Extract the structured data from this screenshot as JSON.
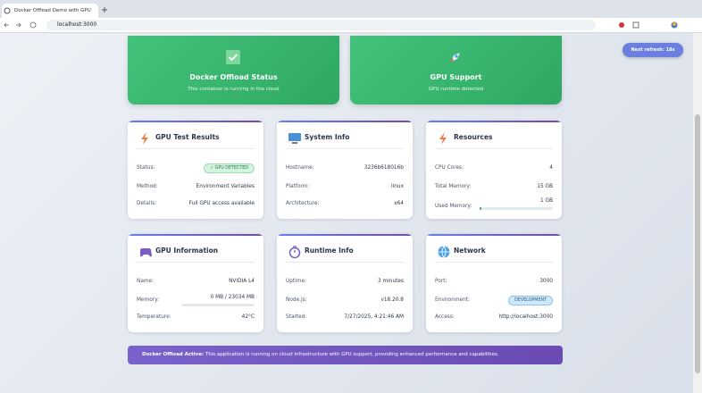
{
  "browser": {
    "tab_title": "Docker Offload Demo with GPU",
    "url": "localhost:3000"
  },
  "refresh_button": "Next refresh: 18s",
  "hero": [
    {
      "title": "Docker Offload Status",
      "subtitle": "This container is running in the cloud"
    },
    {
      "title": "GPU Support",
      "subtitle": "GPU runtime detected"
    }
  ],
  "cards": [
    {
      "title": "GPU Test Results",
      "rows": [
        {
          "label": "Status:",
          "badge": "✓ GPU DETECTED"
        },
        {
          "label": "Method:",
          "value": "Environment Variables"
        },
        {
          "label": "Details:",
          "value": "Full GPU access available"
        }
      ]
    },
    {
      "title": "System Info",
      "rows": [
        {
          "label": "Hostname:",
          "value": "3236b618016b"
        },
        {
          "label": "Platform:",
          "value": "linux"
        },
        {
          "label": "Architecture:",
          "value": "x64"
        }
      ]
    },
    {
      "title": "Resources",
      "rows": [
        {
          "label": "CPU Cores:",
          "value": "4"
        },
        {
          "label": "Total Memory:",
          "value": "15 GB"
        },
        {
          "label": "Used Memory:",
          "value": "1 GB",
          "progress": 3
        }
      ]
    },
    {
      "title": "GPU Information",
      "rows": [
        {
          "label": "Name:",
          "value": "NVIDIA L4"
        },
        {
          "label": "Memory:",
          "value": "0 MB / 23034 MB",
          "progress": 0
        },
        {
          "label": "Temperature:",
          "value": "42°C"
        }
      ]
    },
    {
      "title": "Runtime Info",
      "rows": [
        {
          "label": "Uptime:",
          "value": "3 minutes"
        },
        {
          "label": "Node.js:",
          "value": "v18.20.8"
        },
        {
          "label": "Started:",
          "value": "7/27/2025, 4:21:46 AM"
        }
      ]
    },
    {
      "title": "Network",
      "rows": [
        {
          "label": "Port:",
          "value": "3000"
        },
        {
          "label": "Environment:",
          "badge": "DEVELOPMENT"
        },
        {
          "label": "Access:",
          "value": "http://localhost:3000"
        }
      ]
    }
  ],
  "banner": {
    "strong": "Docker Offload Active:",
    "text": "This application is running on cloud infrastructure with GPU support, providing enhanced performance and capabilities."
  }
}
